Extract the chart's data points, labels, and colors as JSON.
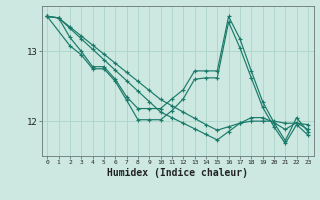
{
  "background_color": "#cce8e0",
  "grid_color": "#aad4c8",
  "line_color": "#1a7a6a",
  "xlabel": "Humidex (Indice chaleur)",
  "xlabel_fontsize": 7,
  "ytick_labels": [
    "12",
    "13"
  ],
  "ytick_values": [
    12,
    13
  ],
  "ylim": [
    11.55,
    13.65
  ],
  "xlim": [
    -0.5,
    23.5
  ],
  "xtick_values": [
    0,
    1,
    2,
    3,
    4,
    5,
    6,
    7,
    8,
    9,
    10,
    11,
    12,
    13,
    14,
    15,
    16,
    17,
    18,
    19,
    20,
    21,
    22,
    23
  ],
  "series": [
    {
      "x": [
        0,
        1,
        2,
        3,
        4,
        5,
        6,
        7,
        8,
        9,
        10,
        11,
        12,
        13,
        14,
        15,
        16,
        17,
        18,
        19,
        20,
        21,
        22,
        23
      ],
      "y": [
        13.5,
        13.48,
        13.35,
        13.22,
        13.09,
        12.96,
        12.83,
        12.7,
        12.57,
        12.44,
        12.31,
        12.22,
        12.13,
        12.04,
        11.95,
        11.87,
        11.92,
        11.97,
        12.0,
        12.0,
        12.0,
        11.97,
        11.97,
        11.95
      ]
    },
    {
      "x": [
        0,
        1,
        2,
        3,
        4,
        5,
        6,
        7,
        8,
        9,
        10,
        11,
        12,
        13,
        14,
        15,
        16,
        17,
        18,
        19,
        20,
        21,
        22,
        23
      ],
      "y": [
        13.5,
        13.48,
        13.33,
        13.18,
        13.03,
        12.88,
        12.73,
        12.58,
        12.43,
        12.28,
        12.13,
        12.05,
        11.97,
        11.89,
        11.81,
        11.73,
        11.85,
        11.97,
        12.05,
        12.05,
        11.98,
        11.88,
        11.98,
        11.88
      ]
    },
    {
      "x": [
        0,
        1,
        2,
        3,
        4,
        5,
        6,
        7,
        8,
        9,
        10,
        11,
        12,
        13,
        14,
        15,
        16,
        17,
        18,
        19,
        20,
        21,
        22,
        23
      ],
      "y": [
        13.5,
        13.48,
        13.2,
        13.0,
        12.78,
        12.78,
        12.6,
        12.35,
        12.18,
        12.18,
        12.18,
        12.32,
        12.45,
        12.72,
        12.72,
        12.72,
        13.5,
        13.18,
        12.72,
        12.28,
        11.98,
        11.72,
        12.05,
        11.85
      ]
    },
    {
      "x": [
        0,
        2,
        3,
        4,
        5,
        6,
        7,
        8,
        9,
        10,
        11,
        12,
        13,
        14,
        15,
        16,
        17,
        18,
        19,
        20,
        21,
        22,
        23
      ],
      "y": [
        13.5,
        13.08,
        12.95,
        12.75,
        12.75,
        12.57,
        12.3,
        12.02,
        12.02,
        12.02,
        12.15,
        12.32,
        12.6,
        12.62,
        12.62,
        13.42,
        13.05,
        12.62,
        12.2,
        11.92,
        11.68,
        11.95,
        11.8
      ]
    }
  ]
}
